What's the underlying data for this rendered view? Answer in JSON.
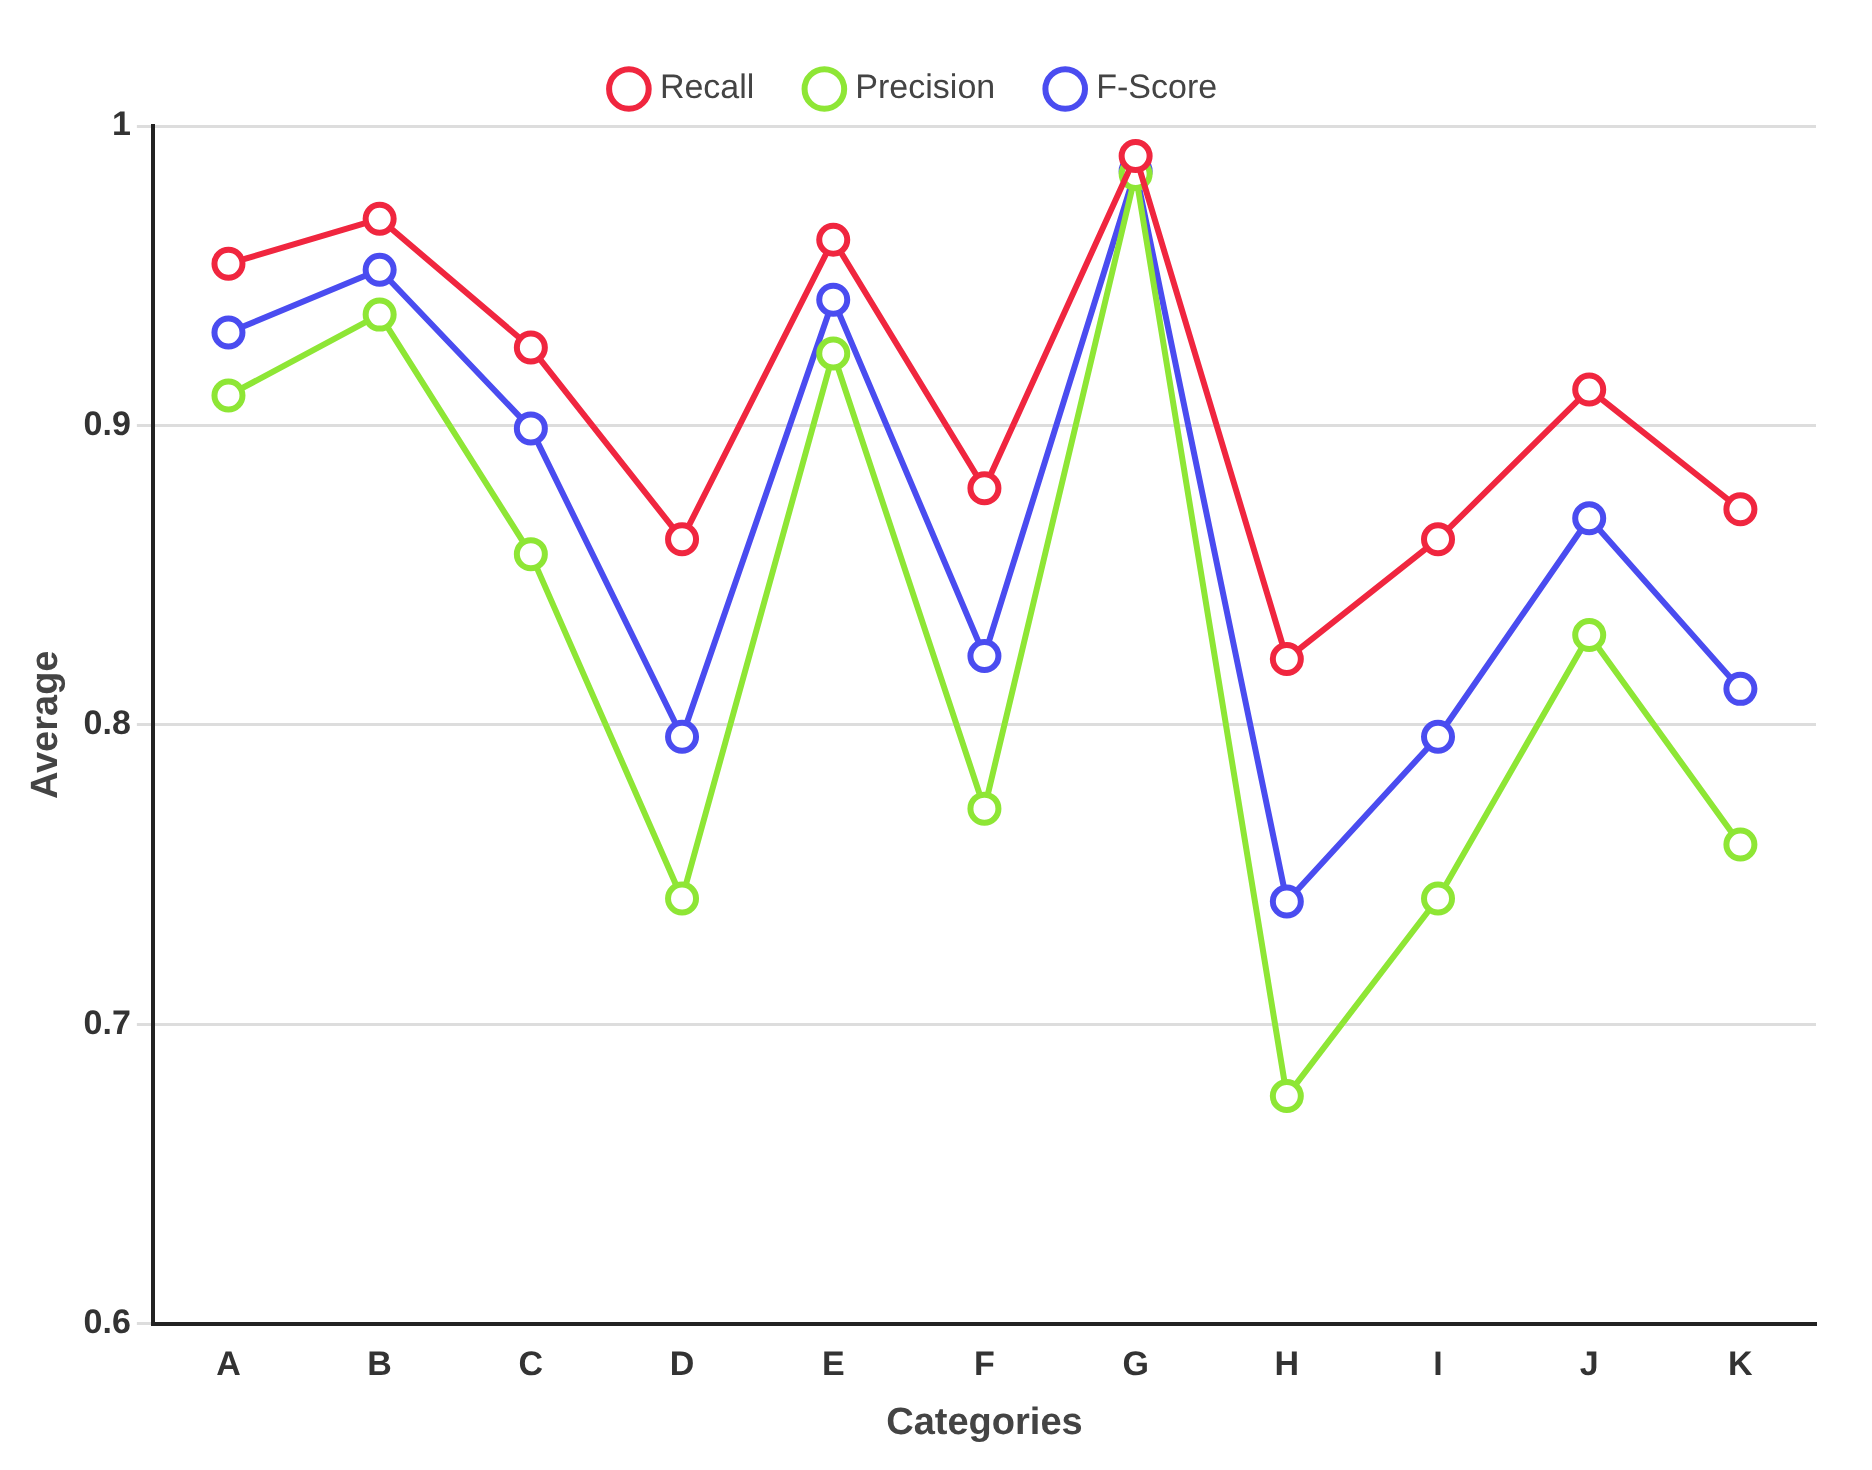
{
  "chart_data": {
    "type": "line",
    "xlabel": "Categories",
    "ylabel": "Average",
    "categories": [
      "A",
      "B",
      "C",
      "D",
      "E",
      "F",
      "G",
      "H",
      "I",
      "J",
      "K"
    ],
    "series": [
      {
        "name": "Recall",
        "color": "#f0263f",
        "values": [
          0.954,
          0.969,
          0.926,
          0.862,
          0.962,
          0.879,
          0.99,
          0.822,
          0.862,
          0.912,
          0.872
        ]
      },
      {
        "name": "Precision",
        "color": "#8ee635",
        "values": [
          0.91,
          0.937,
          0.857,
          0.742,
          0.924,
          0.772,
          0.984,
          0.676,
          0.742,
          0.83,
          0.76
        ]
      },
      {
        "name": "F-Score",
        "color": "#4a4cf0",
        "values": [
          0.931,
          0.952,
          0.899,
          0.796,
          0.942,
          0.823,
          0.985,
          0.741,
          0.796,
          0.869,
          0.812
        ]
      }
    ],
    "ylim": [
      0.6,
      1
    ],
    "yticks": [
      0.6,
      0.7,
      0.8,
      0.9,
      {
        "value": 1,
        "label": "1"
      }
    ],
    "grid": "y",
    "legend": "top",
    "marker": "circle",
    "line_style": "solid"
  }
}
